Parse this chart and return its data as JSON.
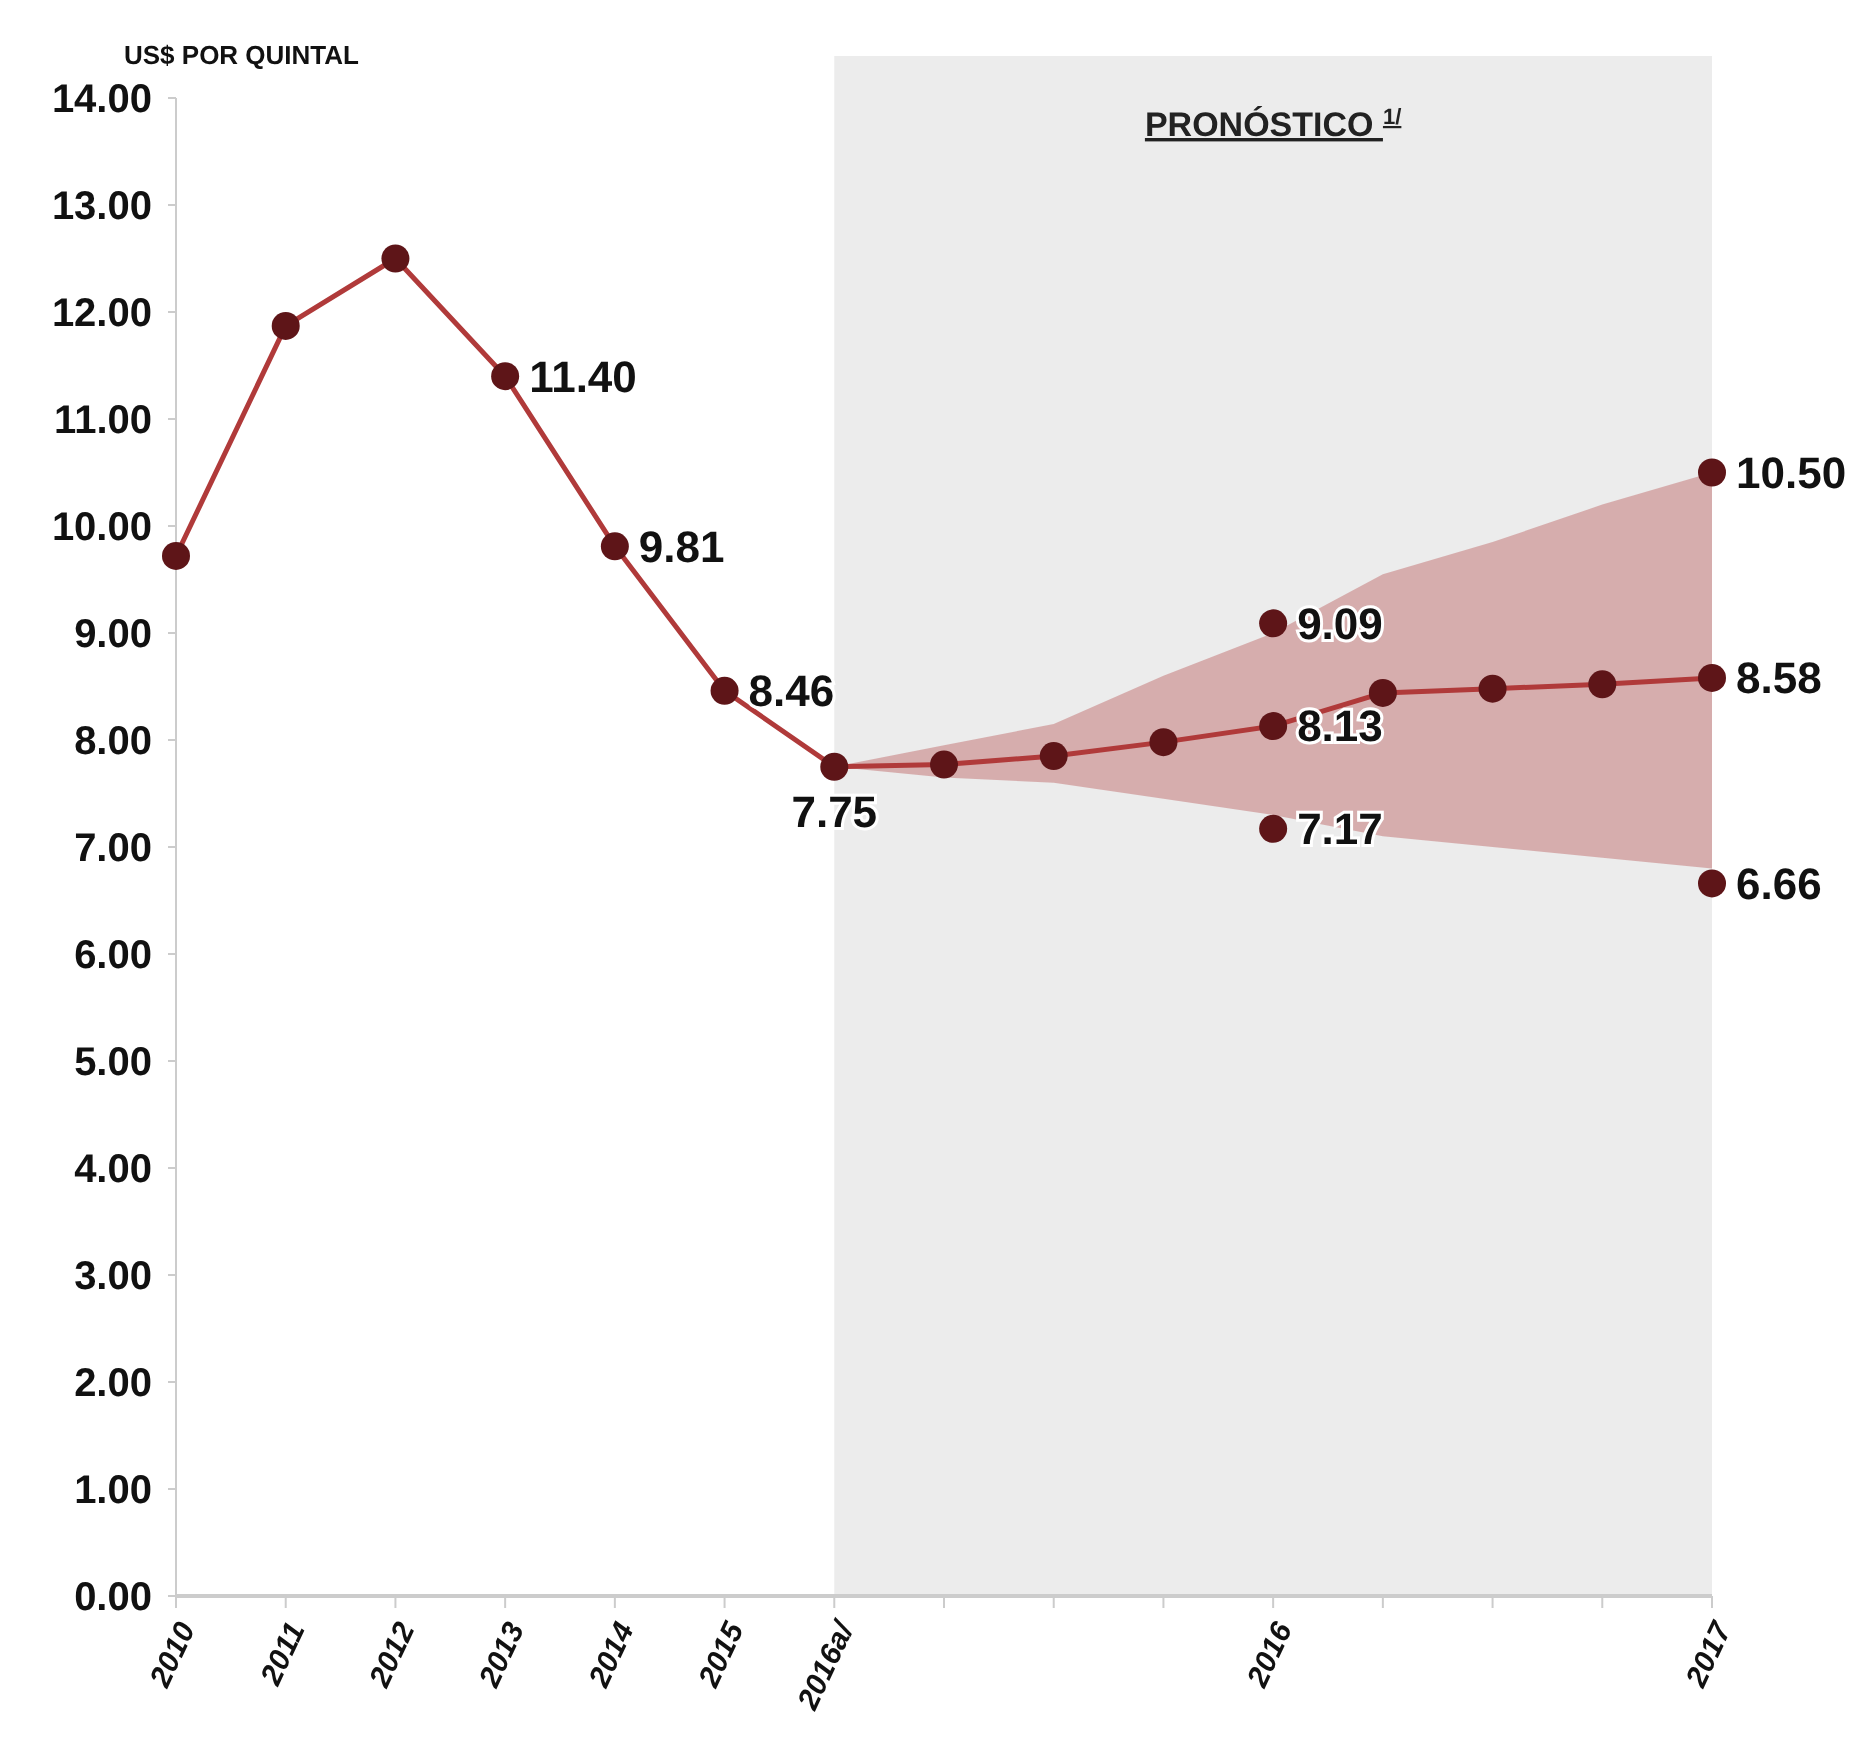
{
  "chart_data": {
    "type": "line",
    "ylabel": "US$ POR QUINTAL",
    "categories": [
      "2010",
      "2011",
      "2012",
      "2013",
      "2014",
      "2015",
      "2016a/",
      null,
      null,
      null,
      "2016",
      null,
      null,
      null,
      "2017"
    ],
    "ylim": [
      0,
      14
    ],
    "yticks": [
      {
        "value": 0,
        "label": "0.00"
      },
      {
        "value": 1,
        "label": "1.00"
      },
      {
        "value": 2,
        "label": "2.00"
      },
      {
        "value": 3,
        "label": "3.00"
      },
      {
        "value": 4,
        "label": "4.00"
      },
      {
        "value": 5,
        "label": "5.00"
      },
      {
        "value": 6,
        "label": "6.00"
      },
      {
        "value": 7,
        "label": "7.00"
      },
      {
        "value": 8,
        "label": "8.00"
      },
      {
        "value": 9,
        "label": "9.00"
      },
      {
        "value": 10,
        "label": "10.00"
      },
      {
        "value": 11,
        "label": "11.00"
      },
      {
        "value": 12,
        "label": "12.00"
      },
      {
        "value": 13,
        "label": "13.00"
      },
      {
        "value": 14,
        "label": "14.00"
      }
    ],
    "grid": false,
    "marker": "circle",
    "line_style": "solid",
    "bands": [
      {
        "axis": "x",
        "from": "2016a/",
        "to": "2017",
        "label": "PRONÓSTICO $^{1/}$",
        "color": "#ececec"
      }
    ],
    "series": [
      {
        "color": "#b03a3a",
        "values": [
          9.72,
          11.87,
          12.5,
          11.4,
          9.81,
          8.46,
          7.75,
          7.77,
          7.85,
          7.98,
          8.13,
          8.44,
          8.48,
          8.52,
          8.58
        ],
        "lower": [
          null,
          null,
          null,
          null,
          null,
          null,
          7.75,
          7.65,
          7.6,
          7.45,
          7.3,
          7.1,
          7.0,
          6.9,
          6.8
        ],
        "upper": [
          null,
          null,
          null,
          null,
          null,
          null,
          7.75,
          7.95,
          8.15,
          8.6,
          9.0,
          9.55,
          9.85,
          10.2,
          10.5
        ],
        "value_labels": [
          null,
          null,
          null,
          "11.40",
          "9.81",
          "8.46",
          "7.75",
          null,
          null,
          null,
          "8.13",
          null,
          null,
          null,
          "8.58"
        ]
      },
      {
        "type": "scatter",
        "color": "#5e1518",
        "values": [
          null,
          null,
          null,
          null,
          null,
          null,
          null,
          null,
          null,
          null,
          9.09,
          null,
          null,
          null,
          10.5
        ],
        "value_labels": [
          null,
          null,
          null,
          null,
          null,
          null,
          null,
          null,
          null,
          null,
          "9.09",
          null,
          null,
          null,
          "10.50"
        ]
      },
      {
        "type": "scatter",
        "color": "#5e1518",
        "values": [
          null,
          null,
          null,
          null,
          null,
          null,
          null,
          null,
          null,
          null,
          7.17,
          null,
          null,
          null,
          6.66
        ],
        "value_labels": [
          null,
          null,
          null,
          null,
          null,
          null,
          null,
          null,
          null,
          null,
          "7.17",
          null,
          null,
          null,
          "6.66"
        ]
      }
    ]
  }
}
